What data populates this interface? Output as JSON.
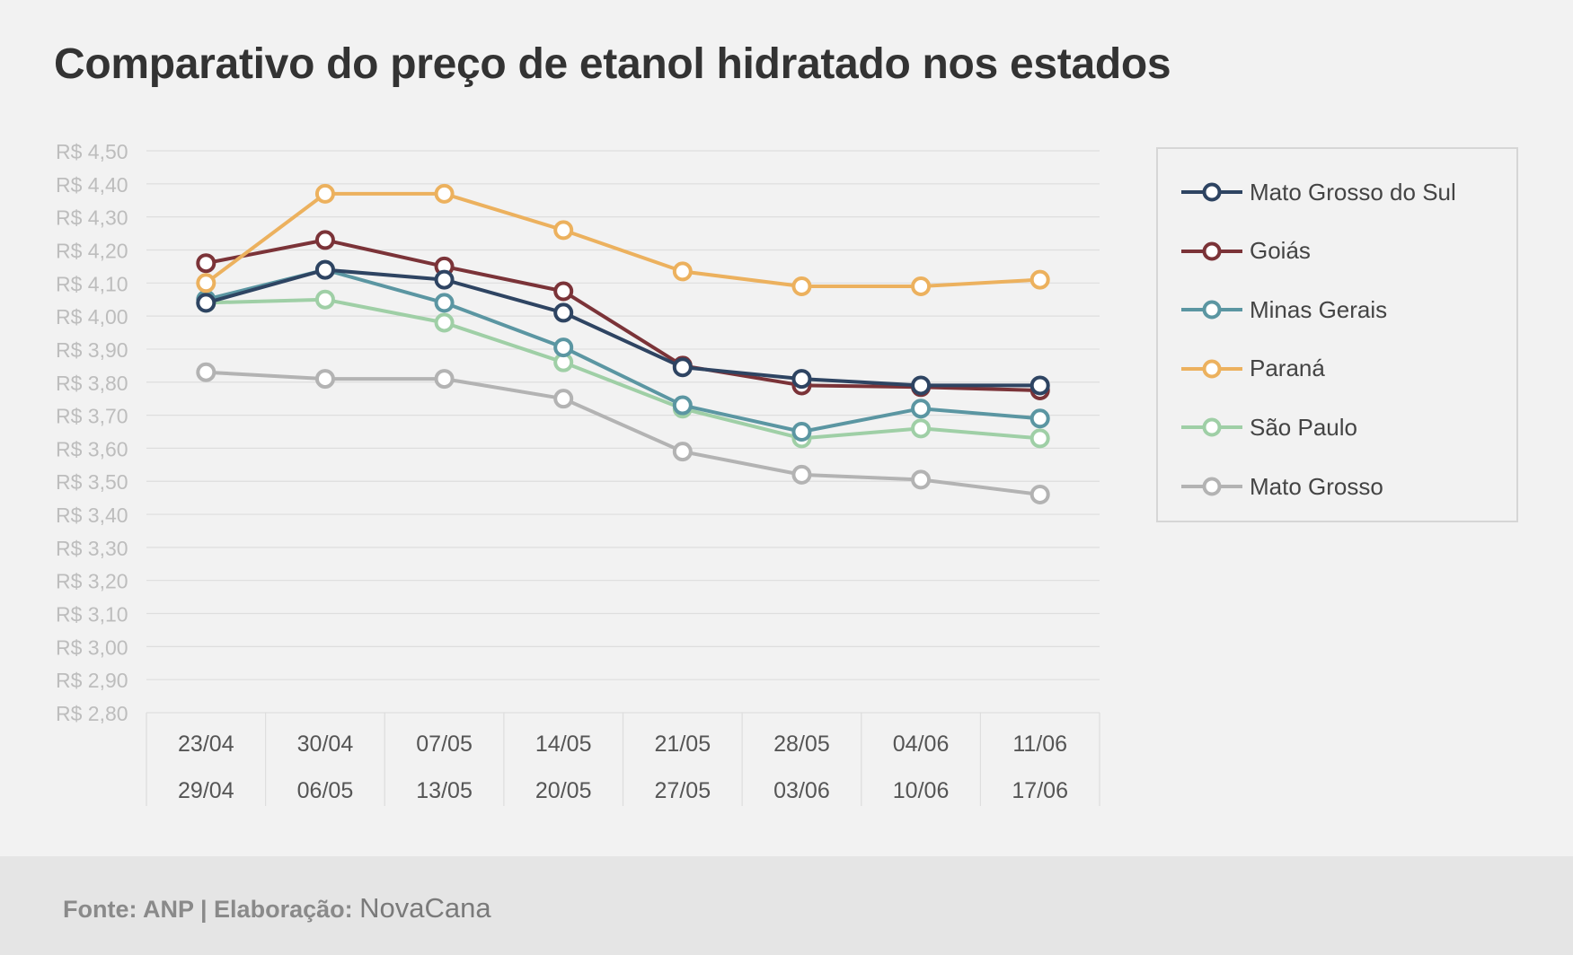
{
  "title": "Comparativo do preço de etanol hidratado nos estados",
  "footer": {
    "source": "Fonte: ANP | Elaboração:",
    "brand": "NovaCana"
  },
  "chart_data": {
    "type": "line",
    "title": "Comparativo do preço de etanol hidratado nos estados",
    "xlabel": "",
    "ylabel": "",
    "ylim": [
      2.8,
      4.5
    ],
    "y_ticks": [
      "R$ 4,50",
      "R$ 4,40",
      "R$ 4,30",
      "R$ 4,20",
      "R$ 4,10",
      "R$ 4,00",
      "R$ 3,90",
      "R$ 3,80",
      "R$ 3,70",
      "R$ 3,60",
      "R$ 3,50",
      "R$ 3,40",
      "R$ 3,30",
      "R$ 3,20",
      "R$ 3,10",
      "R$ 3,00",
      "R$ 2,90",
      "R$ 2,80"
    ],
    "y_tick_values": [
      4.5,
      4.4,
      4.3,
      4.2,
      4.1,
      4.0,
      3.9,
      3.8,
      3.7,
      3.6,
      3.5,
      3.4,
      3.3,
      3.2,
      3.1,
      3.0,
      2.9,
      2.8
    ],
    "categories": [
      {
        "start": "23/04",
        "end": "29/04"
      },
      {
        "start": "30/04",
        "end": "06/05"
      },
      {
        "start": "07/05",
        "end": "13/05"
      },
      {
        "start": "14/05",
        "end": "20/05"
      },
      {
        "start": "21/05",
        "end": "27/05"
      },
      {
        "start": "28/05",
        "end": "03/06"
      },
      {
        "start": "04/06",
        "end": "10/06"
      },
      {
        "start": "11/06",
        "end": "17/06"
      }
    ],
    "grid": true,
    "legend_position": "right",
    "series": [
      {
        "name": "Mato Grosso",
        "color": "#b3b3b3",
        "values": [
          3.83,
          3.81,
          3.81,
          3.75,
          3.59,
          3.52,
          3.505,
          3.46
        ]
      },
      {
        "name": "São Paulo",
        "color": "#9fcfa6",
        "values": [
          4.04,
          4.05,
          3.98,
          3.86,
          3.72,
          3.63,
          3.66,
          3.63
        ]
      },
      {
        "name": "Minas Gerais",
        "color": "#5b96a2",
        "values": [
          4.05,
          4.14,
          4.04,
          3.905,
          3.73,
          3.65,
          3.72,
          3.69
        ]
      },
      {
        "name": "Goiás",
        "color": "#7b3338",
        "values": [
          4.16,
          4.23,
          4.15,
          4.075,
          3.85,
          3.79,
          3.785,
          3.775
        ]
      },
      {
        "name": "Mato Grosso do Sul",
        "color": "#2e4462",
        "values": [
          4.04,
          4.14,
          4.11,
          4.01,
          3.845,
          3.81,
          3.79,
          3.79
        ]
      },
      {
        "name": "Paraná",
        "color": "#ecb15e",
        "values": [
          4.1,
          4.37,
          4.37,
          4.26,
          4.135,
          4.09,
          4.09,
          4.11
        ]
      }
    ],
    "legend": [
      {
        "name": "Mato Grosso do Sul",
        "color": "#2e4462"
      },
      {
        "name": "Goiás",
        "color": "#7b3338"
      },
      {
        "name": "Minas Gerais",
        "color": "#5b96a2"
      },
      {
        "name": "Paraná",
        "color": "#ecb15e"
      },
      {
        "name": "São Paulo",
        "color": "#9fcfa6"
      },
      {
        "name": "Mato Grosso",
        "color": "#b3b3b3"
      }
    ]
  }
}
